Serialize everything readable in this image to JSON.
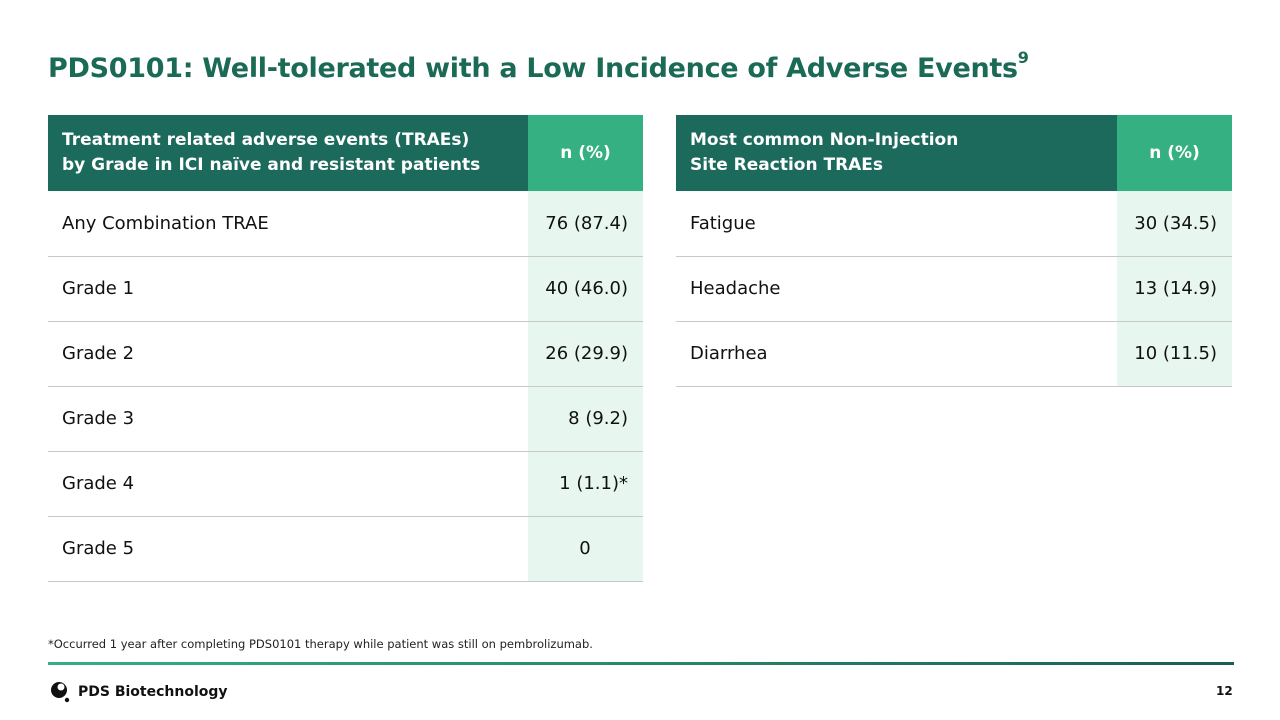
{
  "title": "PDS0101: Well-tolerated with a Low Incidence of Adverse Events",
  "title_sup": "9",
  "table1": {
    "header": [
      "Treatment related adverse events (TRAEs)",
      "by Grade in ICI naïve and resistant patients"
    ],
    "n_header": "n (%)",
    "rows": [
      {
        "label": "Any Combination TRAE",
        "value": "76 (87.4)"
      },
      {
        "label": "Grade 1",
        "value": "40 (46.0)"
      },
      {
        "label": "Grade 2",
        "value": "26 (29.9)"
      },
      {
        "label": "Grade 3",
        "value": "8 (9.2)"
      },
      {
        "label": "Grade 4",
        "value": "1 (1.1)*"
      },
      {
        "label": "Grade 5",
        "value": "0"
      }
    ]
  },
  "table2": {
    "header": [
      "Most common Non-Injection",
      "Site Reaction TRAEs"
    ],
    "n_header": "n (%)",
    "rows": [
      {
        "label": "Fatigue",
        "value": "30 (34.5)"
      },
      {
        "label": "Headache",
        "value": "13 (14.9)"
      },
      {
        "label": "Diarrhea",
        "value": "10 (11.5)"
      }
    ]
  },
  "footnote": "*Occurred 1 year after completing PDS0101 therapy while patient was still on pembrolizumab.",
  "logo_text": "PDS Biotechnology",
  "page_number": "12"
}
